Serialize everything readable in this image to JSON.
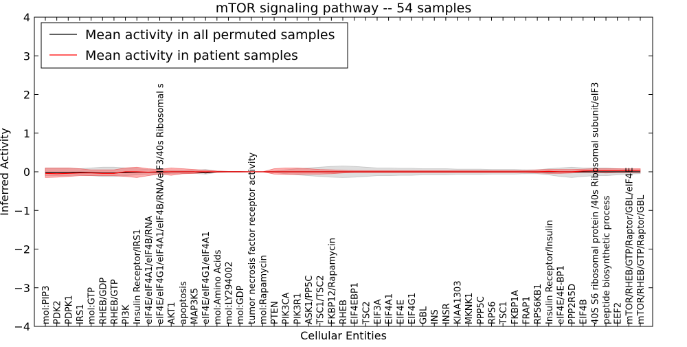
{
  "chart_data": {
    "type": "line",
    "title": "mTOR signaling pathway -- 54 samples",
    "xlabel": "Cellular Entities",
    "ylabel": "Inferred Activity",
    "ylim": [
      -4,
      4
    ],
    "yticks": [
      -4,
      -3,
      -2,
      -1,
      0,
      1,
      2,
      3,
      4
    ],
    "ytick_labels": [
      "−4",
      "−3",
      "−2",
      "−1",
      "0",
      "1",
      "2",
      "3",
      "4"
    ],
    "grid": false,
    "legend_position": "top-left",
    "categories": [
      "mol:PIP3",
      "PDK2",
      "PDPK1",
      "IRS1",
      "mol:GTP",
      "RHEB/GDP",
      "RHEB/GTP",
      "PI3K",
      "Insulin Receptor/IRS1",
      "eIF4E/eIF4A1/eIF4B/RNA",
      "eIF4E/eIF4G1/eIF4A1/eIF4B/RNA/eIF3/40s Ribosomal s",
      "AKT1",
      "apoptosis",
      "MAP3K5",
      "eIF4E/eIF4G1/eIF4A1",
      "mol:Amino Acids",
      "mol:LY294002",
      "mol:GDP",
      "tumor necrosis factor receptor activity",
      "mol:Rapamycin",
      "PTEN",
      "PIK3CA",
      "PIK3R1",
      "ASK1/PP5C",
      "TSC1/TSC2",
      "FKBP12/Rapamycin",
      "RHEB",
      "EIF4EBP1",
      "TSC2",
      "EIF3A",
      "EIF4A1",
      "EIF4E",
      "EIF4G1",
      "GBL",
      "INS",
      "INSR",
      "KIAA1303",
      "MKNK1",
      "PPP5C",
      "RPS6",
      "TSC1",
      "FKBP1A",
      "FRAP1",
      "RPS6KB1",
      "Insulin Receptor/Insulin",
      "eIF4E/4E-BP1",
      "PPP2R5D",
      "EIF4B",
      "40S S6 ribosomal protein /40s Ribosomal subunit/eIF3",
      "peptide biosynthetic process",
      "EEF2",
      "mTOR/RHEB/GTP/Raptor/GBL/eIF4E",
      "mTOR/RHEB/GTP/Raptor/GBL"
    ],
    "series": [
      {
        "name": "Mean activity in all permuted samples",
        "color": "#000000",
        "values": [
          -0.02,
          -0.02,
          -0.02,
          -0.01,
          -0.02,
          -0.03,
          -0.03,
          -0.02,
          -0.01,
          -0.01,
          -0.01,
          0.0,
          0.0,
          0.0,
          -0.03,
          0.0,
          0.0,
          0.0,
          0.0,
          0.0,
          0.0,
          0.0,
          0.0,
          0.0,
          0.0,
          0.0,
          0.0,
          0.0,
          0.0,
          0.0,
          0.0,
          0.0,
          0.0,
          0.0,
          0.0,
          0.0,
          0.0,
          0.0,
          0.0,
          0.0,
          0.0,
          0.0,
          0.0,
          0.0,
          0.0,
          0.0,
          0.0,
          0.0,
          0.0,
          0.0,
          0.0,
          0.0,
          0.0
        ],
        "band_low": [
          -0.1,
          -0.1,
          -0.1,
          -0.08,
          -0.1,
          -0.12,
          -0.12,
          -0.1,
          -0.08,
          -0.06,
          -0.06,
          -0.04,
          -0.04,
          -0.04,
          -0.06,
          -0.02,
          -0.01,
          -0.01,
          0.0,
          0.0,
          -0.02,
          -0.05,
          -0.08,
          -0.1,
          -0.12,
          -0.14,
          -0.15,
          -0.14,
          -0.12,
          -0.1,
          -0.1,
          -0.09,
          -0.09,
          -0.08,
          -0.08,
          -0.08,
          -0.07,
          -0.07,
          -0.07,
          -0.06,
          -0.06,
          -0.06,
          -0.05,
          -0.05,
          -0.08,
          -0.12,
          -0.15,
          -0.12,
          -0.1,
          -0.1,
          -0.08,
          -0.06,
          -0.05
        ],
        "band_high": [
          0.1,
          0.1,
          0.1,
          0.08,
          0.1,
          0.12,
          0.12,
          0.1,
          0.08,
          0.06,
          0.06,
          0.04,
          0.04,
          0.04,
          0.06,
          0.02,
          0.01,
          0.01,
          0.0,
          0.0,
          0.02,
          0.05,
          0.08,
          0.1,
          0.12,
          0.14,
          0.15,
          0.14,
          0.12,
          0.1,
          0.1,
          0.09,
          0.09,
          0.08,
          0.08,
          0.08,
          0.07,
          0.07,
          0.07,
          0.06,
          0.06,
          0.06,
          0.05,
          0.05,
          0.08,
          0.1,
          0.12,
          0.1,
          0.1,
          0.1,
          0.08,
          0.06,
          0.05
        ]
      },
      {
        "name": "Mean activity in patient samples",
        "color": "#ff0000",
        "values": [
          -0.04,
          -0.05,
          -0.04,
          -0.03,
          -0.03,
          -0.04,
          -0.04,
          0.0,
          0.0,
          -0.01,
          0.0,
          0.0,
          0.0,
          0.0,
          0.0,
          0.0,
          0.0,
          0.0,
          0.0,
          0.0,
          0.0,
          0.0,
          0.0,
          0.0,
          0.0,
          0.0,
          0.0,
          0.0,
          0.0,
          0.0,
          0.0,
          0.0,
          0.0,
          0.0,
          0.0,
          0.0,
          0.0,
          0.0,
          0.0,
          0.0,
          0.0,
          0.0,
          0.0,
          0.0,
          0.01,
          0.0,
          0.0,
          0.02,
          0.03,
          0.03,
          0.03,
          0.03,
          0.04
        ],
        "band_low": [
          -0.15,
          -0.14,
          -0.12,
          -0.1,
          -0.1,
          -0.1,
          -0.1,
          -0.12,
          -0.15,
          -0.1,
          -0.06,
          -0.09,
          -0.05,
          -0.04,
          -0.02,
          -0.01,
          0.0,
          0.0,
          0.0,
          0.0,
          -0.06,
          -0.07,
          -0.07,
          -0.06,
          -0.06,
          -0.05,
          -0.03,
          -0.02,
          -0.02,
          -0.02,
          -0.02,
          -0.02,
          -0.02,
          -0.02,
          -0.02,
          -0.02,
          -0.02,
          -0.02,
          -0.02,
          -0.02,
          -0.02,
          -0.02,
          -0.02,
          -0.03,
          -0.04,
          -0.04,
          -0.03,
          -0.02,
          -0.02,
          -0.03,
          -0.02,
          -0.02,
          -0.02
        ],
        "band_high": [
          0.1,
          0.1,
          0.1,
          0.08,
          0.05,
          0.05,
          0.05,
          0.1,
          0.12,
          0.08,
          0.06,
          0.1,
          0.08,
          0.06,
          0.04,
          0.02,
          0.01,
          0.01,
          0.0,
          0.0,
          0.08,
          0.1,
          0.1,
          0.08,
          0.06,
          0.05,
          0.04,
          0.03,
          0.03,
          0.03,
          0.03,
          0.03,
          0.03,
          0.03,
          0.03,
          0.03,
          0.03,
          0.03,
          0.03,
          0.03,
          0.03,
          0.03,
          0.03,
          0.05,
          0.06,
          0.06,
          0.06,
          0.07,
          0.08,
          0.08,
          0.08,
          0.08,
          0.08
        ]
      }
    ]
  }
}
